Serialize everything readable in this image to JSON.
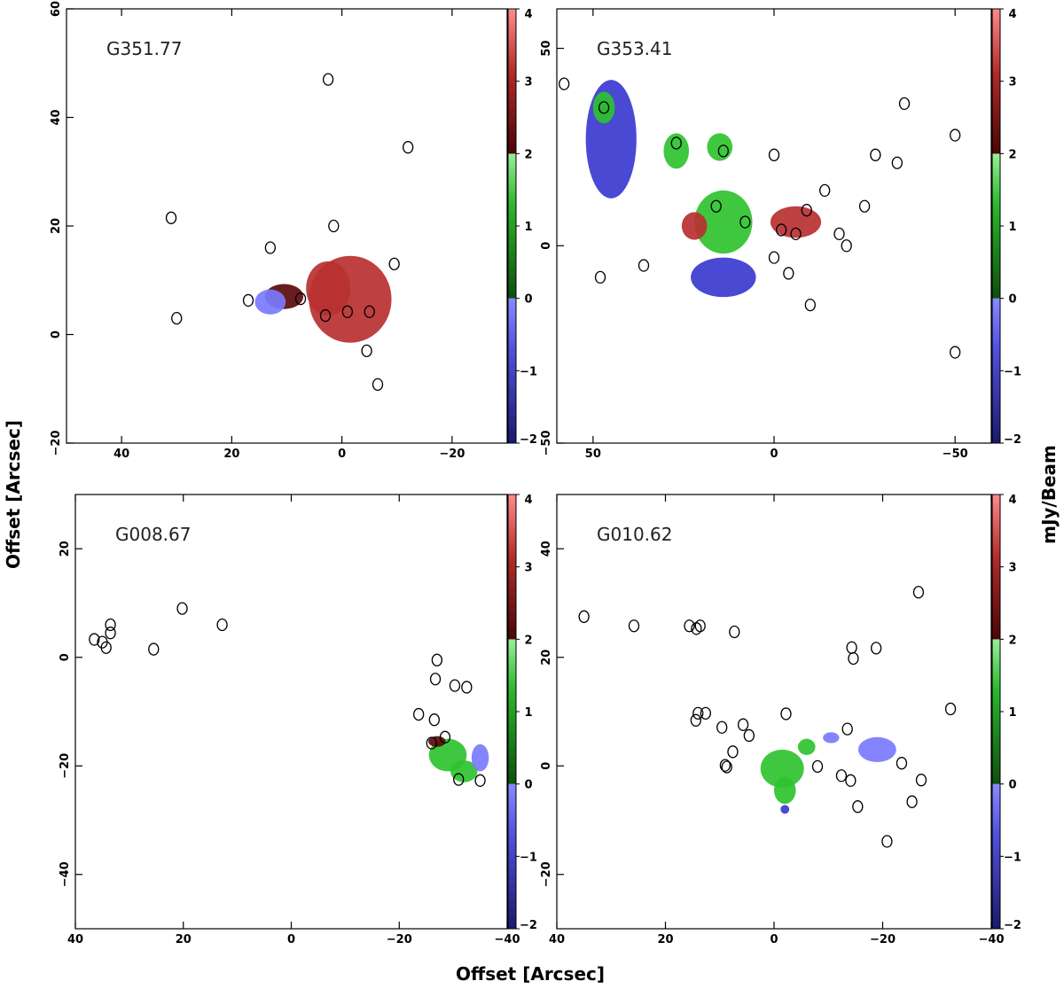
{
  "figure": {
    "xlabel": "Offset [Arcsec]",
    "ylabel": "Offset [Arcsec]",
    "colorbar_label": "mJy/Beam",
    "colormap": [
      "#1a1a6e",
      "#3a3ad0",
      "#7a7aff",
      "#0e5e0e",
      "#2fc22f",
      "#88ee88",
      "#5a0a0a",
      "#b83030",
      "#ff8080"
    ]
  },
  "chart_data": [
    {
      "type": "heatmap",
      "source": "G351.77",
      "xlim": [
        50,
        -30
      ],
      "ylim": [
        -20,
        60
      ],
      "xticks": [
        40,
        20,
        0,
        -20
      ],
      "yticks": [
        -20,
        0,
        20,
        40,
        60
      ],
      "colorbar_range": [
        -2,
        4
      ],
      "colorbar_ticks": [
        -2,
        -1,
        0,
        1,
        2,
        3,
        4
      ],
      "emission_regions": [
        {
          "x": -1.5,
          "y": 6.5,
          "rx": 7.5,
          "ry": 8.0,
          "value": 2.7
        },
        {
          "x": 2.5,
          "y": 8.5,
          "rx": 4.0,
          "ry": 5.0,
          "value": 2.8
        },
        {
          "x": 10.5,
          "y": 7.0,
          "rx": 3.5,
          "ry": 2.3,
          "value": 2.3
        },
        {
          "x": 13.0,
          "y": 6.0,
          "rx": 2.8,
          "ry": 2.3,
          "value": -0.5
        }
      ],
      "sources": [
        {
          "x": 2.5,
          "y": 47
        },
        {
          "x": -12,
          "y": 34.5
        },
        {
          "x": 31,
          "y": 21.5
        },
        {
          "x": 1.5,
          "y": 20
        },
        {
          "x": 13,
          "y": 16
        },
        {
          "x": -9.5,
          "y": 13
        },
        {
          "x": 17,
          "y": 6.3
        },
        {
          "x": 7.5,
          "y": 6.6
        },
        {
          "x": 30,
          "y": 3
        },
        {
          "x": 3,
          "y": 3.5
        },
        {
          "x": -1,
          "y": 4.2
        },
        {
          "x": -5,
          "y": 4.2
        },
        {
          "x": -4.5,
          "y": -3
        },
        {
          "x": -6.5,
          "y": -9.2
        }
      ]
    },
    {
      "type": "heatmap",
      "source": "G353.41",
      "xlim": [
        60,
        -60
      ],
      "ylim": [
        -50,
        60
      ],
      "xticks": [
        50,
        0,
        -50
      ],
      "yticks": [
        -50,
        0,
        50
      ],
      "colorbar_range": [
        -2,
        4
      ],
      "colorbar_ticks": [
        -2,
        -1,
        0,
        1,
        2,
        3,
        4
      ],
      "emission_regions": [
        {
          "x": 45,
          "y": 27,
          "rx": 7,
          "ry": 15,
          "value": -1.2
        },
        {
          "x": 47,
          "y": 35,
          "rx": 3,
          "ry": 4,
          "value": 1.3
        },
        {
          "x": 27,
          "y": 24,
          "rx": 3.5,
          "ry": 4.5,
          "value": 1.2
        },
        {
          "x": 15,
          "y": 25,
          "rx": 3.5,
          "ry": 3.5,
          "value": 1.1
        },
        {
          "x": 14,
          "y": 6,
          "rx": 8,
          "ry": 8,
          "value": 1.2
        },
        {
          "x": 22,
          "y": 5,
          "rx": 3.5,
          "ry": 3.5,
          "value": 2.8
        },
        {
          "x": -6,
          "y": 6,
          "rx": 7,
          "ry": 4,
          "value": 3.0
        },
        {
          "x": 14,
          "y": -8,
          "rx": 9,
          "ry": 5,
          "value": -0.8
        }
      ],
      "sources": [
        {
          "x": 58,
          "y": 41
        },
        {
          "x": 47,
          "y": 35
        },
        {
          "x": 27,
          "y": 26
        },
        {
          "x": 14,
          "y": 24
        },
        {
          "x": 0,
          "y": 23
        },
        {
          "x": -28,
          "y": 23
        },
        {
          "x": -34,
          "y": 21
        },
        {
          "x": -50,
          "y": 28
        },
        {
          "x": -36,
          "y": 36
        },
        {
          "x": 48,
          "y": -8
        },
        {
          "x": 36,
          "y": -5
        },
        {
          "x": 16,
          "y": 10
        },
        {
          "x": 8,
          "y": 6
        },
        {
          "x": -2,
          "y": 4
        },
        {
          "x": -6,
          "y": 3
        },
        {
          "x": -9,
          "y": 9
        },
        {
          "x": -14,
          "y": 14
        },
        {
          "x": -18,
          "y": 3
        },
        {
          "x": -20,
          "y": 0
        },
        {
          "x": -25,
          "y": 10
        },
        {
          "x": 0,
          "y": -3
        },
        {
          "x": -4,
          "y": -7
        },
        {
          "x": -10,
          "y": -15
        },
        {
          "x": -50,
          "y": -27
        }
      ]
    },
    {
      "type": "heatmap",
      "source": "G008.67",
      "xlim": [
        40,
        -40
      ],
      "ylim": [
        -50,
        30
      ],
      "xticks": [
        40,
        20,
        0,
        -20,
        -40
      ],
      "yticks": [
        -40,
        -20,
        0,
        20
      ],
      "colorbar_range": [
        -2,
        4
      ],
      "colorbar_ticks": [
        -2,
        -1,
        0,
        1,
        2,
        3,
        4
      ],
      "emission_regions": [
        {
          "x": -29,
          "y": -18,
          "rx": 3.5,
          "ry": 3,
          "value": 1.2
        },
        {
          "x": -32,
          "y": -21,
          "rx": 2.5,
          "ry": 2,
          "value": 1.0
        },
        {
          "x": -35,
          "y": -18.5,
          "rx": 1.6,
          "ry": 2.5,
          "value": -0.6
        },
        {
          "x": -27,
          "y": -15.5,
          "rx": 1.6,
          "ry": 1,
          "value": 2.6
        }
      ],
      "sources": [
        {
          "x": 33.5,
          "y": 6
        },
        {
          "x": 36.5,
          "y": 3.3
        },
        {
          "x": 35,
          "y": 2.8
        },
        {
          "x": 34.3,
          "y": 1.8
        },
        {
          "x": 33.5,
          "y": 4.5
        },
        {
          "x": 25.5,
          "y": 1.5
        },
        {
          "x": 20.2,
          "y": 9
        },
        {
          "x": 12.8,
          "y": 6
        },
        {
          "x": -27,
          "y": -0.5
        },
        {
          "x": -26.7,
          "y": -4
        },
        {
          "x": -30.3,
          "y": -5.2
        },
        {
          "x": -32.5,
          "y": -5.5
        },
        {
          "x": -23.6,
          "y": -10.5
        },
        {
          "x": -26.5,
          "y": -11.5
        },
        {
          "x": -26,
          "y": -15.8
        },
        {
          "x": -28.5,
          "y": -14.7
        },
        {
          "x": -31,
          "y": -22.5
        },
        {
          "x": -35,
          "y": -22.7
        }
      ]
    },
    {
      "type": "heatmap",
      "source": "G010.62",
      "xlim": [
        40,
        -40
      ],
      "ylim": [
        -30,
        50
      ],
      "xticks": [
        40,
        20,
        0,
        -20,
        -40
      ],
      "yticks": [
        -20,
        0,
        20,
        40
      ],
      "colorbar_range": [
        -2,
        4
      ],
      "colorbar_ticks": [
        -2,
        -1,
        0,
        1,
        2,
        3,
        4
      ],
      "emission_regions": [
        {
          "x": -1.5,
          "y": -0.5,
          "rx": 4,
          "ry": 3.5,
          "value": 1.2
        },
        {
          "x": -2,
          "y": -4.5,
          "rx": 2,
          "ry": 2.5,
          "value": 1.0
        },
        {
          "x": -2,
          "y": -8,
          "rx": 0.8,
          "ry": 0.8,
          "value": -0.7
        },
        {
          "x": -10.5,
          "y": 5.2,
          "rx": 1.5,
          "ry": 1,
          "value": -0.3
        },
        {
          "x": -19,
          "y": 3,
          "rx": 3.5,
          "ry": 2.3,
          "value": -0.6
        },
        {
          "x": -6,
          "y": 3.5,
          "rx": 1.6,
          "ry": 1.5,
          "value": 0.8
        }
      ],
      "sources": [
        {
          "x": 35,
          "y": 27.5
        },
        {
          "x": 25.8,
          "y": 25.8
        },
        {
          "x": 15.6,
          "y": 25.8
        },
        {
          "x": 14.3,
          "y": 25.3
        },
        {
          "x": 13.6,
          "y": 25.8
        },
        {
          "x": 7.3,
          "y": 24.7
        },
        {
          "x": -14.3,
          "y": 21.8
        },
        {
          "x": -14.6,
          "y": 19.8
        },
        {
          "x": -18.8,
          "y": 21.7
        },
        {
          "x": -26.6,
          "y": 32
        },
        {
          "x": -32.5,
          "y": 10.5
        },
        {
          "x": 14,
          "y": 9.7
        },
        {
          "x": 12.6,
          "y": 9.7
        },
        {
          "x": 14.4,
          "y": 8.4
        },
        {
          "x": 9.6,
          "y": 7.1
        },
        {
          "x": 5.7,
          "y": 7.6
        },
        {
          "x": -13.5,
          "y": 6.8
        },
        {
          "x": -23.5,
          "y": 0.5
        },
        {
          "x": -27.1,
          "y": -2.6
        },
        {
          "x": -14.1,
          "y": -2.7
        },
        {
          "x": -15.4,
          "y": -7.5
        },
        {
          "x": -25.4,
          "y": -6.6
        },
        {
          "x": -20.8,
          "y": -13.9
        },
        {
          "x": -2.2,
          "y": 9.6
        },
        {
          "x": 4.6,
          "y": 5.6
        },
        {
          "x": 7.6,
          "y": 2.6
        },
        {
          "x": 9,
          "y": 0.1
        },
        {
          "x": -8,
          "y": -0.1
        },
        {
          "x": -12.4,
          "y": -1.8
        },
        {
          "x": 8.7,
          "y": -0.2
        }
      ]
    }
  ]
}
